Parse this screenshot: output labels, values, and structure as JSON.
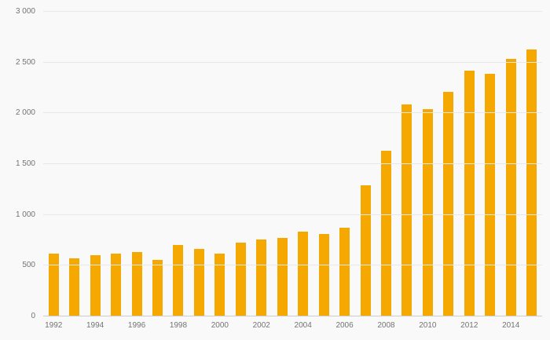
{
  "chart_data": {
    "type": "bar",
    "title": "",
    "xlabel": "",
    "ylabel": "",
    "background_color": "#f9f9f9",
    "bar_color": "#f5a800",
    "grid_color": "#e8e8e8",
    "axis_color": "#cccccc",
    "label_color": "#737373",
    "grid": true,
    "legend": false,
    "ylim": [
      0,
      3000
    ],
    "yticks": [
      {
        "value": 0,
        "label": "0"
      },
      {
        "value": 500,
        "label": "500"
      },
      {
        "value": 1000,
        "label": "1 000"
      },
      {
        "value": 1500,
        "label": "1 500"
      },
      {
        "value": 2000,
        "label": "2 000"
      },
      {
        "value": 2500,
        "label": "2 500"
      },
      {
        "value": 3000,
        "label": "3 000"
      }
    ],
    "categories": [
      "1992",
      "1993",
      "1994",
      "1995",
      "1996",
      "1997",
      "1998",
      "1999",
      "2000",
      "2001",
      "2002",
      "2003",
      "2004",
      "2005",
      "2006",
      "2007",
      "2008",
      "2009",
      "2010",
      "2011",
      "2012",
      "2013",
      "2014",
      "2015"
    ],
    "values": [
      620,
      570,
      600,
      620,
      635,
      560,
      705,
      665,
      620,
      730,
      755,
      775,
      835,
      815,
      870,
      1295,
      1635,
      2090,
      2040,
      2210,
      2420,
      2390,
      2540,
      2630
    ],
    "x_labeled_categories": [
      "1992",
      "1994",
      "1996",
      "1998",
      "2000",
      "2002",
      "2004",
      "2006",
      "2008",
      "2010",
      "2012",
      "2014"
    ]
  }
}
